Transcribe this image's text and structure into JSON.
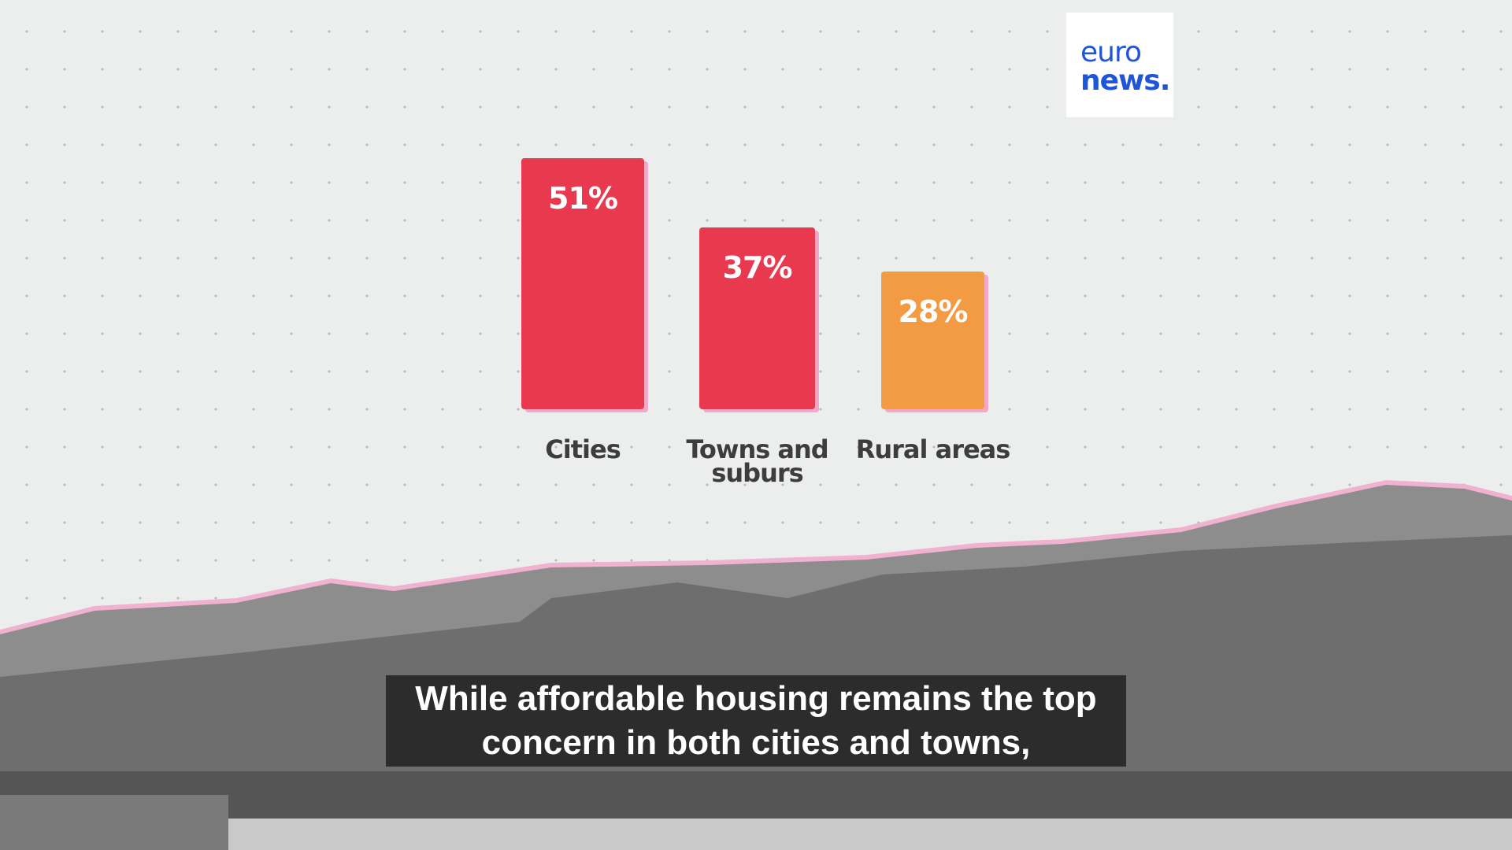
{
  "chart_data": {
    "type": "bar",
    "categories": [
      "Cities",
      "Towns and suburs",
      "Rural areas"
    ],
    "values": [
      51,
      37,
      28
    ],
    "value_labels": [
      "51%",
      "37%",
      "28%"
    ],
    "colors": [
      "#e8394f",
      "#e8394f",
      "#f29b42"
    ]
  },
  "logo": {
    "line1": "euro",
    "line2": "news."
  },
  "caption": "While affordable housing remains the top concern in both cities and towns,"
}
